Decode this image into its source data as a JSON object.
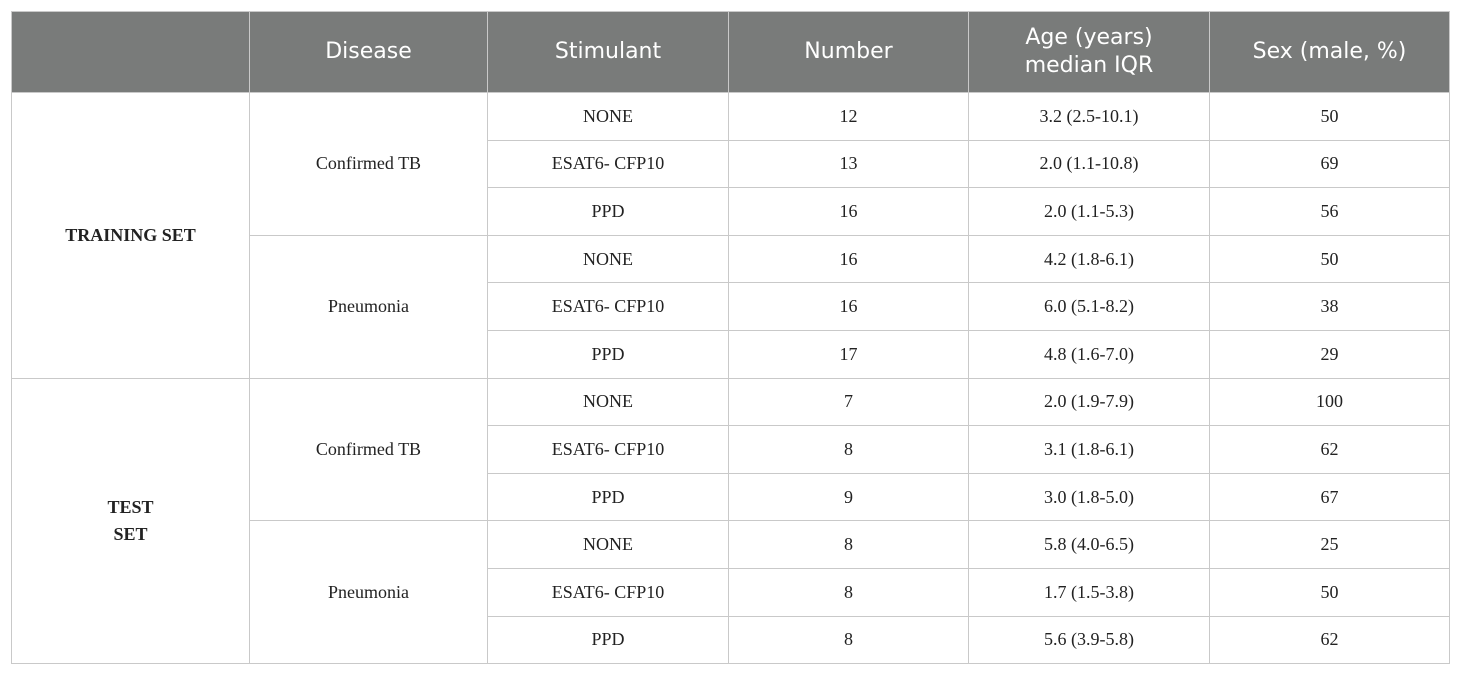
{
  "header": {
    "col0": "",
    "col1": "Disease",
    "col2": "Stimulant",
    "col3": "Number",
    "col4_line1": "Age (years)",
    "col4_line2": "median IQR",
    "col5": "Sex (male, %)"
  },
  "groups": [
    {
      "set_label": "TRAINING SET",
      "diseases": [
        {
          "name": "Confirmed TB",
          "rows": [
            {
              "stimulant": "NONE",
              "number": "12",
              "age": "3.2 (2.5-10.1)",
              "sex": "50"
            },
            {
              "stimulant": "ESAT6- CFP10",
              "number": "13",
              "age": "2.0 (1.1-10.8)",
              "sex": "69"
            },
            {
              "stimulant": "PPD",
              "number": "16",
              "age": "2.0 (1.1-5.3)",
              "sex": "56"
            }
          ]
        },
        {
          "name": "Pneumonia",
          "rows": [
            {
              "stimulant": "NONE",
              "number": "16",
              "age": "4.2 (1.8-6.1)",
              "sex": "50"
            },
            {
              "stimulant": "ESAT6- CFP10",
              "number": "16",
              "age": "6.0 (5.1-8.2)",
              "sex": "38"
            },
            {
              "stimulant": "PPD",
              "number": "17",
              "age": "4.8 (1.6-7.0)",
              "sex": "29"
            }
          ]
        }
      ]
    },
    {
      "set_label_line1": "TEST",
      "set_label_line2": "SET",
      "diseases": [
        {
          "name": "Confirmed TB",
          "rows": [
            {
              "stimulant": "NONE",
              "number": "7",
              "age": "2.0 (1.9-7.9)",
              "sex": "100"
            },
            {
              "stimulant": "ESAT6- CFP10",
              "number": "8",
              "age": "3.1 (1.8-6.1)",
              "sex": "62"
            },
            {
              "stimulant": "PPD",
              "number": "9",
              "age": "3.0 (1.8-5.0)",
              "sex": "67"
            }
          ]
        },
        {
          "name": "Pneumonia",
          "rows": [
            {
              "stimulant": "NONE",
              "number": "8",
              "age": "5.8 (4.0-6.5)",
              "sex": "25"
            },
            {
              "stimulant": "ESAT6- CFP10",
              "number": "8",
              "age": "1.7 (1.5-3.8)",
              "sex": "50"
            },
            {
              "stimulant": "PPD",
              "number": "8",
              "age": "5.6 (3.9-5.8)",
              "sex": "62"
            }
          ]
        }
      ]
    }
  ]
}
